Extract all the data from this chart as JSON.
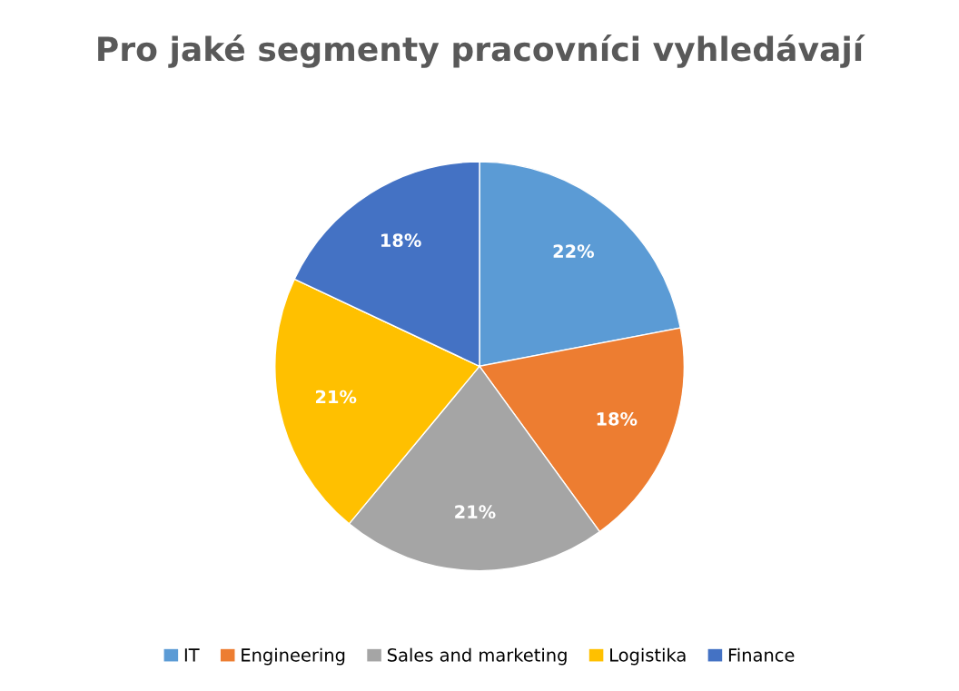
{
  "chart_data": {
    "type": "pie",
    "title": "Pro jaké segmenty pracovníci vyhledávají",
    "categories": [
      "IT",
      "Engineering",
      "Sales and marketing",
      "Logistika",
      "Finance"
    ],
    "values": [
      22,
      18,
      21,
      21,
      18
    ],
    "value_labels": [
      "22%",
      "18%",
      "21%",
      "21%",
      "18%"
    ],
    "colors": [
      "#5b9bd5",
      "#ed7d31",
      "#a5a5a5",
      "#ffc000",
      "#4472c4"
    ],
    "legend": "bottom"
  }
}
